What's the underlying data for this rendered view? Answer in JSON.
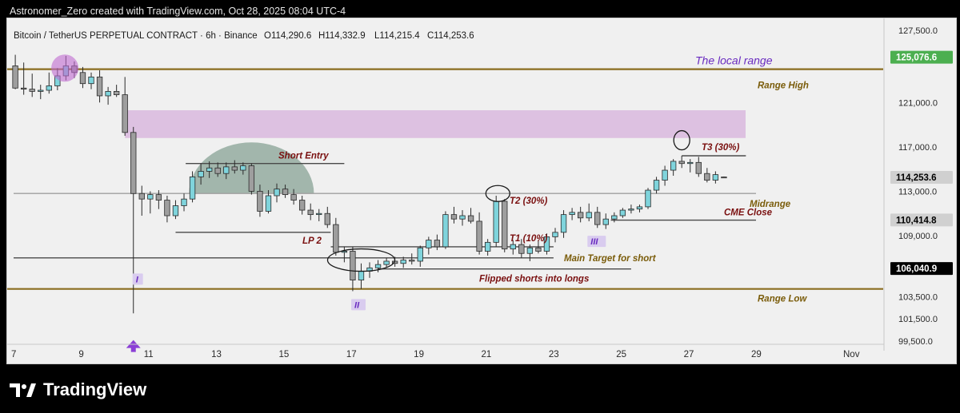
{
  "header": {
    "attribution": "Astronomer_Zero created with TradingView.com, Oct 28, 2025 08:04 UTC-4"
  },
  "footer": {
    "brand": "TradingView"
  },
  "chart_data": {
    "type": "candlestick",
    "title": "Bitcoin / TetherUS PERPETUAL CONTRACT · 6h · Binance",
    "ohlc_readout": {
      "open": "O114,290.6",
      "high": "H114,332.9",
      "low": "L114,215.4",
      "close": "C114,253.6"
    },
    "ylim": [
      99500,
      127500
    ],
    "y_ticks": [
      {
        "value": 127500,
        "label": "127,500.0"
      },
      {
        "value": 121000,
        "label": "121,000.0"
      },
      {
        "value": 117000,
        "label": "117,000.0"
      },
      {
        "value": 113000,
        "label": "113,000.0"
      },
      {
        "value": 109000,
        "label": "109,000.0"
      },
      {
        "value": 103500,
        "label": "103,500.0"
      },
      {
        "value": 101500,
        "label": "101,500.0"
      },
      {
        "value": 99500,
        "label": "99,500.0"
      }
    ],
    "x_ticks": [
      {
        "day": 7,
        "label": "7"
      },
      {
        "day": 9,
        "label": "9"
      },
      {
        "day": 11,
        "label": "11"
      },
      {
        "day": 13,
        "label": "13"
      },
      {
        "day": 15,
        "label": "15"
      },
      {
        "day": 17,
        "label": "17"
      },
      {
        "day": 19,
        "label": "19"
      },
      {
        "day": 21,
        "label": "21"
      },
      {
        "day": 23,
        "label": "23"
      },
      {
        "day": 25,
        "label": "25"
      },
      {
        "day": 27,
        "label": "27"
      },
      {
        "day": 29,
        "label": "29"
      },
      {
        "day": 32,
        "label": "Nov"
      }
    ],
    "price_badges": [
      {
        "value": 125076.6,
        "label": "125,076.6",
        "color": "#4caf50",
        "text_color": "#ffffff"
      },
      {
        "value": 114253.6,
        "label": "114,253.6",
        "color": "#d0d0d0",
        "text_color": "#000000"
      },
      {
        "value": 110414.8,
        "label": "110,414.8",
        "color": "#d0d0d0",
        "text_color": "#000000"
      },
      {
        "value": 106040.9,
        "label": "106,040.9",
        "color": "#000000",
        "text_color": "#ffffff"
      }
    ],
    "colors": {
      "up": "#7fd4dc",
      "down": "#9e9e9e",
      "wick": "#2a2a2a",
      "range_line": "#8a6d1f",
      "zone": "#d9b8de",
      "dome": "#8fa79b",
      "annotation_red": "#7a1010",
      "annotation_gold": "#7a5c0a",
      "annotation_purple": "#6a2cc0"
    },
    "candles": [
      {
        "t": 7.05,
        "o": 124300,
        "h": 125300,
        "l": 122200,
        "c": 122300
      },
      {
        "t": 7.3,
        "o": 122300,
        "h": 124600,
        "l": 121700,
        "c": 122200
      },
      {
        "t": 7.55,
        "o": 122200,
        "h": 123600,
        "l": 121500,
        "c": 122000
      },
      {
        "t": 7.8,
        "o": 122000,
        "h": 122600,
        "l": 121300,
        "c": 122100
      },
      {
        "t": 8.05,
        "o": 122100,
        "h": 123700,
        "l": 121800,
        "c": 122500
      },
      {
        "t": 8.3,
        "o": 122500,
        "h": 124100,
        "l": 122100,
        "c": 123400
      },
      {
        "t": 8.55,
        "o": 123400,
        "h": 125200,
        "l": 123000,
        "c": 124300
      },
      {
        "t": 8.8,
        "o": 124300,
        "h": 124700,
        "l": 123200,
        "c": 123700
      },
      {
        "t": 9.05,
        "o": 123700,
        "h": 124200,
        "l": 122300,
        "c": 122700
      },
      {
        "t": 9.3,
        "o": 122700,
        "h": 123700,
        "l": 122200,
        "c": 123300
      },
      {
        "t": 9.55,
        "o": 123300,
        "h": 123900,
        "l": 121000,
        "c": 121600
      },
      {
        "t": 9.8,
        "o": 121600,
        "h": 122400,
        "l": 120800,
        "c": 122000
      },
      {
        "t": 10.05,
        "o": 122000,
        "h": 122600,
        "l": 121500,
        "c": 121700
      },
      {
        "t": 10.3,
        "o": 121700,
        "h": 123300,
        "l": 118000,
        "c": 118300
      },
      {
        "t": 10.55,
        "o": 118300,
        "h": 118800,
        "l": 102000,
        "c": 112800
      },
      {
        "t": 10.8,
        "o": 112800,
        "h": 113500,
        "l": 110800,
        "c": 112300
      },
      {
        "t": 11.05,
        "o": 112300,
        "h": 113000,
        "l": 111000,
        "c": 112700
      },
      {
        "t": 11.3,
        "o": 112700,
        "h": 113100,
        "l": 111400,
        "c": 112200
      },
      {
        "t": 11.55,
        "o": 112200,
        "h": 112600,
        "l": 110200,
        "c": 110800
      },
      {
        "t": 11.8,
        "o": 110800,
        "h": 112200,
        "l": 110500,
        "c": 111700
      },
      {
        "t": 12.05,
        "o": 111700,
        "h": 112800,
        "l": 111200,
        "c": 112300
      },
      {
        "t": 12.3,
        "o": 112300,
        "h": 114800,
        "l": 112000,
        "c": 114300
      },
      {
        "t": 12.55,
        "o": 114300,
        "h": 115500,
        "l": 113600,
        "c": 114800
      },
      {
        "t": 12.8,
        "o": 114800,
        "h": 115700,
        "l": 114200,
        "c": 115100
      },
      {
        "t": 13.05,
        "o": 115100,
        "h": 115600,
        "l": 114300,
        "c": 114600
      },
      {
        "t": 13.3,
        "o": 114600,
        "h": 115600,
        "l": 114100,
        "c": 115200
      },
      {
        "t": 13.55,
        "o": 115200,
        "h": 115800,
        "l": 114600,
        "c": 114900
      },
      {
        "t": 13.8,
        "o": 114900,
        "h": 115600,
        "l": 114500,
        "c": 115300
      },
      {
        "t": 14.05,
        "o": 115300,
        "h": 115500,
        "l": 112700,
        "c": 113000
      },
      {
        "t": 14.3,
        "o": 113000,
        "h": 113600,
        "l": 110700,
        "c": 111200
      },
      {
        "t": 14.55,
        "o": 111200,
        "h": 113100,
        "l": 111000,
        "c": 112600
      },
      {
        "t": 14.8,
        "o": 112600,
        "h": 113700,
        "l": 112000,
        "c": 113200
      },
      {
        "t": 15.05,
        "o": 113200,
        "h": 113600,
        "l": 112400,
        "c": 112700
      },
      {
        "t": 15.3,
        "o": 112700,
        "h": 113200,
        "l": 111800,
        "c": 112200
      },
      {
        "t": 15.55,
        "o": 112200,
        "h": 112600,
        "l": 110900,
        "c": 111300
      },
      {
        "t": 15.8,
        "o": 111300,
        "h": 111900,
        "l": 110400,
        "c": 110900
      },
      {
        "t": 16.05,
        "o": 110900,
        "h": 111400,
        "l": 110300,
        "c": 111000
      },
      {
        "t": 16.3,
        "o": 111000,
        "h": 111600,
        "l": 109700,
        "c": 110000
      },
      {
        "t": 16.55,
        "o": 110000,
        "h": 110600,
        "l": 107200,
        "c": 107500
      },
      {
        "t": 16.8,
        "o": 107500,
        "h": 108000,
        "l": 106600,
        "c": 107600
      },
      {
        "t": 17.05,
        "o": 107600,
        "h": 108000,
        "l": 104000,
        "c": 105000
      },
      {
        "t": 17.3,
        "o": 105000,
        "h": 106500,
        "l": 104200,
        "c": 105800
      },
      {
        "t": 17.55,
        "o": 105800,
        "h": 106600,
        "l": 105200,
        "c": 106100
      },
      {
        "t": 17.8,
        "o": 106100,
        "h": 106800,
        "l": 105700,
        "c": 106400
      },
      {
        "t": 18.05,
        "o": 106400,
        "h": 107000,
        "l": 106100,
        "c": 106700
      },
      {
        "t": 18.3,
        "o": 106700,
        "h": 107100,
        "l": 106200,
        "c": 106500
      },
      {
        "t": 18.55,
        "o": 106500,
        "h": 107100,
        "l": 106100,
        "c": 106800
      },
      {
        "t": 18.8,
        "o": 106800,
        "h": 107400,
        "l": 106400,
        "c": 106700
      },
      {
        "t": 19.05,
        "o": 106700,
        "h": 108100,
        "l": 106200,
        "c": 107900
      },
      {
        "t": 19.3,
        "o": 107900,
        "h": 108900,
        "l": 107300,
        "c": 108600
      },
      {
        "t": 19.55,
        "o": 108600,
        "h": 109100,
        "l": 107700,
        "c": 108000
      },
      {
        "t": 19.8,
        "o": 108000,
        "h": 111200,
        "l": 107800,
        "c": 110900
      },
      {
        "t": 20.05,
        "o": 110900,
        "h": 111600,
        "l": 110100,
        "c": 110500
      },
      {
        "t": 20.3,
        "o": 110500,
        "h": 111300,
        "l": 109900,
        "c": 110800
      },
      {
        "t": 20.55,
        "o": 110800,
        "h": 111500,
        "l": 110100,
        "c": 110300
      },
      {
        "t": 20.8,
        "o": 110300,
        "h": 111100,
        "l": 107300,
        "c": 107600
      },
      {
        "t": 21.05,
        "o": 107600,
        "h": 108700,
        "l": 107200,
        "c": 108400
      },
      {
        "t": 21.3,
        "o": 108400,
        "h": 112600,
        "l": 108000,
        "c": 112100
      },
      {
        "t": 21.55,
        "o": 112100,
        "h": 112300,
        "l": 107500,
        "c": 107800
      },
      {
        "t": 21.8,
        "o": 107800,
        "h": 108600,
        "l": 107300,
        "c": 108200
      },
      {
        "t": 22.05,
        "o": 108200,
        "h": 108700,
        "l": 107000,
        "c": 107400
      },
      {
        "t": 22.3,
        "o": 107400,
        "h": 108200,
        "l": 106700,
        "c": 107900
      },
      {
        "t": 22.55,
        "o": 107900,
        "h": 108600,
        "l": 107400,
        "c": 107600
      },
      {
        "t": 22.8,
        "o": 107600,
        "h": 109200,
        "l": 107300,
        "c": 108900
      },
      {
        "t": 23.05,
        "o": 108900,
        "h": 109700,
        "l": 108400,
        "c": 109300
      },
      {
        "t": 23.3,
        "o": 109300,
        "h": 111300,
        "l": 108800,
        "c": 110900
      },
      {
        "t": 23.55,
        "o": 110900,
        "h": 111500,
        "l": 110400,
        "c": 111100
      },
      {
        "t": 23.8,
        "o": 111100,
        "h": 111600,
        "l": 110200,
        "c": 110600
      },
      {
        "t": 24.05,
        "o": 110600,
        "h": 111900,
        "l": 110300,
        "c": 111100
      },
      {
        "t": 24.3,
        "o": 111100,
        "h": 111600,
        "l": 109700,
        "c": 110000
      },
      {
        "t": 24.55,
        "o": 110000,
        "h": 111000,
        "l": 109600,
        "c": 110500
      },
      {
        "t": 24.8,
        "o": 110500,
        "h": 111100,
        "l": 110200,
        "c": 110800
      },
      {
        "t": 25.05,
        "o": 110800,
        "h": 111500,
        "l": 110600,
        "c": 111300
      },
      {
        "t": 25.3,
        "o": 111300,
        "h": 111800,
        "l": 111000,
        "c": 111400
      },
      {
        "t": 25.55,
        "o": 111400,
        "h": 111800,
        "l": 111100,
        "c": 111600
      },
      {
        "t": 25.8,
        "o": 111600,
        "h": 113300,
        "l": 111400,
        "c": 113100
      },
      {
        "t": 26.05,
        "o": 113100,
        "h": 114300,
        "l": 112800,
        "c": 114000
      },
      {
        "t": 26.3,
        "o": 114000,
        "h": 115300,
        "l": 113500,
        "c": 114900
      },
      {
        "t": 26.55,
        "o": 114900,
        "h": 115900,
        "l": 114400,
        "c": 115700
      },
      {
        "t": 26.8,
        "o": 115700,
        "h": 116200,
        "l": 115100,
        "c": 115500
      },
      {
        "t": 27.05,
        "o": 115500,
        "h": 115900,
        "l": 114700,
        "c": 115600
      },
      {
        "t": 27.3,
        "o": 115600,
        "h": 116100,
        "l": 114300,
        "c": 114600
      },
      {
        "t": 27.55,
        "o": 114600,
        "h": 115100,
        "l": 113800,
        "c": 114000
      },
      {
        "t": 27.8,
        "o": 114000,
        "h": 114800,
        "l": 113700,
        "c": 114500
      },
      {
        "t": 28.05,
        "o": 114290.6,
        "h": 114332.9,
        "l": 114215.4,
        "c": 114253.6
      }
    ],
    "range_lines": [
      {
        "value": 124000,
        "label": "Range High"
      },
      {
        "value": 104200,
        "label": "Range Low"
      }
    ],
    "zone": {
      "top": 120300,
      "bottom": 117800,
      "t_start": 10.3,
      "t_end": 30.0
    },
    "levels": [
      {
        "value": 112800,
        "t_start": 7.0,
        "t_end": 29.0,
        "label": "Midrange"
      },
      {
        "value": 110400,
        "t_start": 24.7,
        "t_end": 29.0,
        "label": "CME Close"
      },
      {
        "value": 115500,
        "t_start": 12.1,
        "t_end": 16.8,
        "label": "Short Entry"
      },
      {
        "value": 109300,
        "t_start": 11.8,
        "t_end": 16.4,
        "label": "LP 2"
      },
      {
        "value": 108000,
        "t_start": 16.4,
        "t_end": 23.0,
        "label": "T1 (10%)"
      },
      {
        "value": 107000,
        "t_start": 7.0,
        "t_end": 23.0,
        "label": "Main Target for short"
      },
      {
        "value": 106000,
        "t_start": 17.8,
        "t_end": 25.3,
        "label": "Flipped shorts into longs"
      },
      {
        "value": 116200,
        "t_start": 26.8,
        "t_end": 28.7,
        "label": "T3 (30%)"
      }
    ],
    "annotations": {
      "local_range": "The local range",
      "t2": "T2 (30%)",
      "wave_1": "I",
      "wave_2": "II",
      "wave_3": "III"
    }
  }
}
